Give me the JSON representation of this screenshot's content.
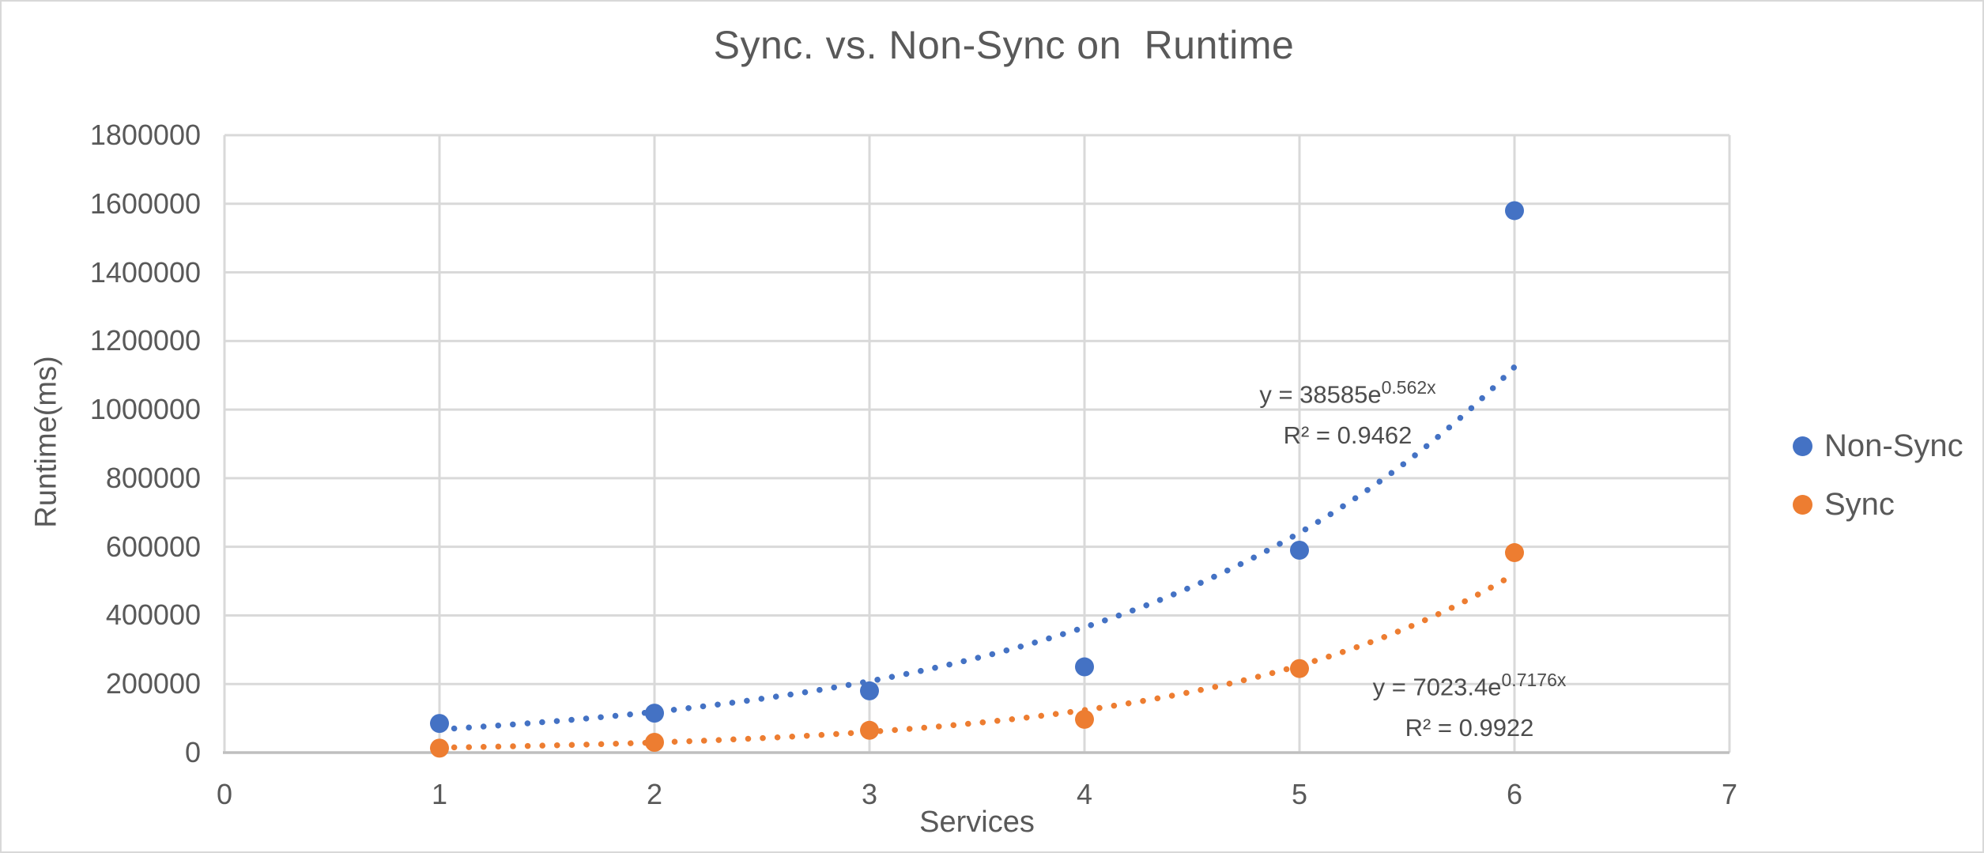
{
  "chart_data": {
    "type": "scatter",
    "title": "Sync. vs. Non-Sync on  Runtime",
    "xlabel": "Services",
    "ylabel": "Runtime(ms)",
    "xlim": [
      0,
      7
    ],
    "ylim": [
      0,
      1800000
    ],
    "x_ticks": [
      0,
      1,
      2,
      3,
      4,
      5,
      6,
      7
    ],
    "y_ticks": [
      0,
      200000,
      400000,
      600000,
      800000,
      1000000,
      1200000,
      1400000,
      1600000,
      1800000
    ],
    "grid": true,
    "legend_position": "right",
    "background_color": "#ffffff",
    "gridline_color": "#d9d9d9",
    "axis_line_color": "#bfbfbf",
    "text_color": "#595959",
    "x": [
      1,
      2,
      3,
      4,
      5,
      6
    ],
    "series": [
      {
        "name": "Non-Sync",
        "color": "#4472C4",
        "values": [
          85000,
          115000,
          180000,
          250000,
          590000,
          1580000
        ],
        "trendline": {
          "type": "exponential",
          "a": 38585,
          "b": 0.562,
          "label_base": "y = 38585e",
          "label_exp": "0.562x",
          "label_r2": "R² = 0.9462"
        }
      },
      {
        "name": "Sync",
        "color": "#ED7D31",
        "values": [
          13000,
          30000,
          65000,
          97000,
          245000,
          583000
        ],
        "trendline": {
          "type": "exponential",
          "a": 7023.4,
          "b": 0.7176,
          "label_base": "y = 7023.4e",
          "label_exp": "0.7176x",
          "label_r2": "R² = 0.9922"
        }
      }
    ]
  }
}
